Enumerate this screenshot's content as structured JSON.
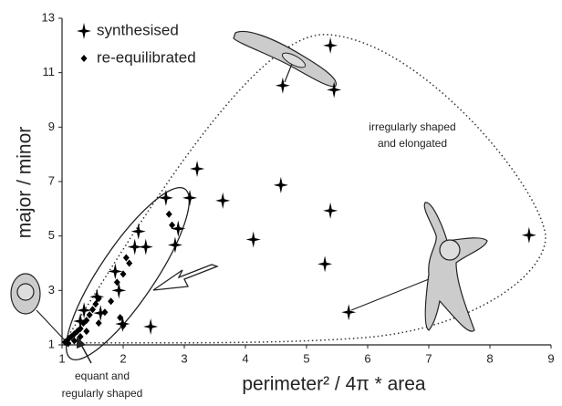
{
  "chart_data": {
    "type": "scatter",
    "xlabel": "perimeter² / 4π * area",
    "ylabel": "major / minor",
    "xlim": [
      1,
      9
    ],
    "ylim": [
      1,
      13
    ],
    "xticks": [
      1,
      2,
      3,
      4,
      5,
      6,
      7,
      8,
      9
    ],
    "yticks": [
      1,
      3,
      5,
      7,
      9,
      11,
      13
    ],
    "legend": "top-left",
    "annotations": [
      "irregularly shaped",
      "and elongated",
      "equant and",
      "regularly shaped"
    ],
    "series": [
      {
        "name": "synthesised",
        "color": "#000000",
        "marker": "star",
        "x": [
          5.39,
          4.61,
          5.45,
          3.21,
          2.7,
          3.09,
          3.63,
          4.58,
          5.39,
          4.13,
          2.25,
          2.19,
          2.37,
          2.85,
          2.9,
          8.64,
          5.3,
          5.69,
          1.87,
          1.93,
          1.57,
          1.63,
          1.99,
          2.45,
          1.36,
          1.3
        ],
        "values": [
          12.0,
          10.53,
          10.37,
          7.47,
          6.4,
          6.4,
          6.3,
          6.87,
          5.93,
          4.87,
          5.17,
          4.6,
          4.6,
          4.67,
          5.27,
          5.03,
          3.97,
          2.2,
          3.7,
          3.0,
          2.77,
          2.17,
          1.77,
          1.67,
          2.27,
          1.87
        ]
      },
      {
        "name": "re-equilibrated",
        "color": "#000000",
        "marker": "diamond",
        "x": [
          1.05,
          1.1,
          1.15,
          1.2,
          1.25,
          1.3,
          1.35,
          1.4,
          1.45,
          1.5,
          1.55,
          1.6,
          1.1,
          1.2,
          1.3,
          1.4,
          1.7,
          1.8,
          1.9,
          2.0,
          2.05,
          2.0,
          1.95,
          2.1,
          2.8,
          2.75,
          1.6
        ],
        "values": [
          1.1,
          1.2,
          1.3,
          1.4,
          1.5,
          1.6,
          1.8,
          1.9,
          2.1,
          2.3,
          2.5,
          2.7,
          1.05,
          1.15,
          1.3,
          1.5,
          2.2,
          2.6,
          3.3,
          3.6,
          4.2,
          1.7,
          2.0,
          4.0,
          5.4,
          5.8,
          1.8
        ]
      }
    ]
  }
}
